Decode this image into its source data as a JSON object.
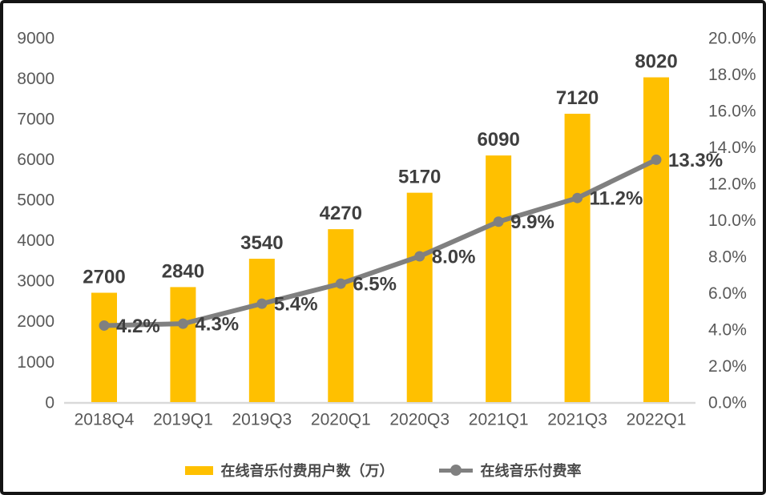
{
  "chart_data": {
    "type": "bar",
    "subtype": "combo-bar-line",
    "categories": [
      "2018Q4",
      "2019Q1",
      "2019Q3",
      "2020Q1",
      "2020Q3",
      "2021Q1",
      "2021Q3",
      "2022Q1"
    ],
    "series": [
      {
        "name": "在线音乐付费用户数（万）",
        "type": "bar",
        "axis": "left",
        "values": [
          2700,
          2840,
          3540,
          4270,
          5170,
          6090,
          7120,
          8020
        ],
        "labels": [
          "2700",
          "2840",
          "3540",
          "4270",
          "5170",
          "6090",
          "7120",
          "8020"
        ],
        "color": "#FFC000"
      },
      {
        "name": "在线音乐付费率",
        "type": "line",
        "axis": "right",
        "values": [
          4.2,
          4.3,
          5.4,
          6.5,
          8.0,
          9.9,
          11.2,
          13.3
        ],
        "labels": [
          "4.2%",
          "4.3%",
          "5.4%",
          "6.5%",
          "8.0%",
          "9.9%",
          "11.2%",
          "13.3%"
        ],
        "color": "#808080"
      }
    ],
    "left_axis": {
      "min": 0,
      "max": 9000,
      "step": 1000,
      "ticks": [
        "0",
        "1000",
        "2000",
        "3000",
        "4000",
        "5000",
        "6000",
        "7000",
        "8000",
        "9000"
      ]
    },
    "right_axis": {
      "min": 0,
      "max": 20,
      "step": 2,
      "ticks": [
        "0.0%",
        "2.0%",
        "4.0%",
        "6.0%",
        "8.0%",
        "10.0%",
        "12.0%",
        "14.0%",
        "16.0%",
        "18.0%",
        "20.0%"
      ]
    },
    "title": "",
    "xlabel": "",
    "ylabel": "",
    "grid": false,
    "legend_position": "bottom"
  },
  "legend": {
    "series1": "在线音乐付费用户数（万）",
    "series2": "在线音乐付费率"
  },
  "colors": {
    "bar": "#FFC000",
    "line": "#808080",
    "axis_text": "#595959",
    "data_label": "#3F3F3F",
    "baseline": "#D9D9D9",
    "frame": "#141414",
    "background": "#FFFFFF"
  }
}
